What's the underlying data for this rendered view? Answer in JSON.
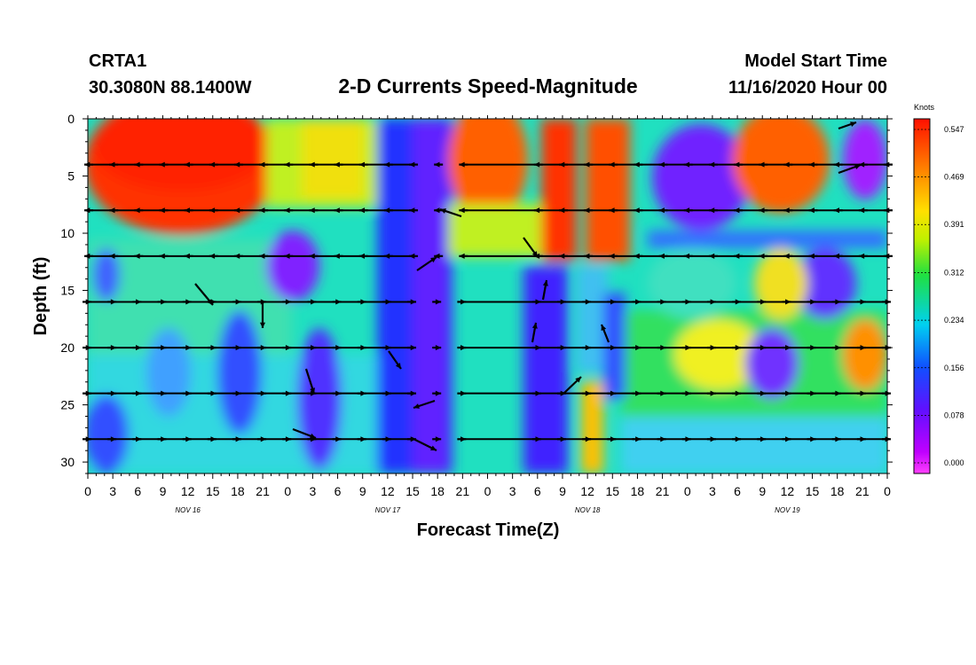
{
  "header": {
    "station": "CRTA1",
    "coords": "30.3080N 88.1400W",
    "title": "2-D Currents Speed-Magnitude",
    "start_label": "Model Start Time",
    "start_time": "11/16/2020 Hour 00"
  },
  "chart_data": {
    "type": "heatmap",
    "title": "2-D Currents Speed-Magnitude",
    "xlabel": "Forecast Time(Z)",
    "ylabel": "Depth (ft)",
    "x_ticks": [
      "0",
      "3",
      "6",
      "9",
      "12",
      "15",
      "18",
      "21",
      "0",
      "3",
      "6",
      "9",
      "12",
      "15",
      "18",
      "21",
      "0",
      "3",
      "6",
      "9",
      "12",
      "15",
      "18",
      "21",
      "0",
      "3",
      "6",
      "9",
      "12",
      "15",
      "18",
      "21",
      "0"
    ],
    "x_dates": [
      "NOV 16",
      "NOV 17",
      "NOV 18",
      "NOV 19"
    ],
    "y_ticks": [
      "0",
      "5",
      "10",
      "15",
      "20",
      "25",
      "30"
    ],
    "ylim": [
      0,
      31
    ],
    "xlim_hours": [
      0,
      96
    ],
    "colorbar": {
      "unit": "Knots",
      "labels": [
        "0.547",
        "0.469",
        "0.391",
        "0.312",
        "0.234",
        "0.156",
        "0.078",
        "0.000"
      ],
      "min": 0.0,
      "max": 0.547
    },
    "vector_rows_depth_ft": [
      4,
      8,
      12,
      16,
      20,
      24,
      28
    ]
  },
  "colors": {
    "red": "#ff2000",
    "orange": "#ff8000",
    "yellow": "#f0e000",
    "green": "#20e020",
    "cyan": "#00d8e8",
    "blue": "#1040ff",
    "purple": "#8000ff",
    "magenta": "#ff00ff"
  }
}
